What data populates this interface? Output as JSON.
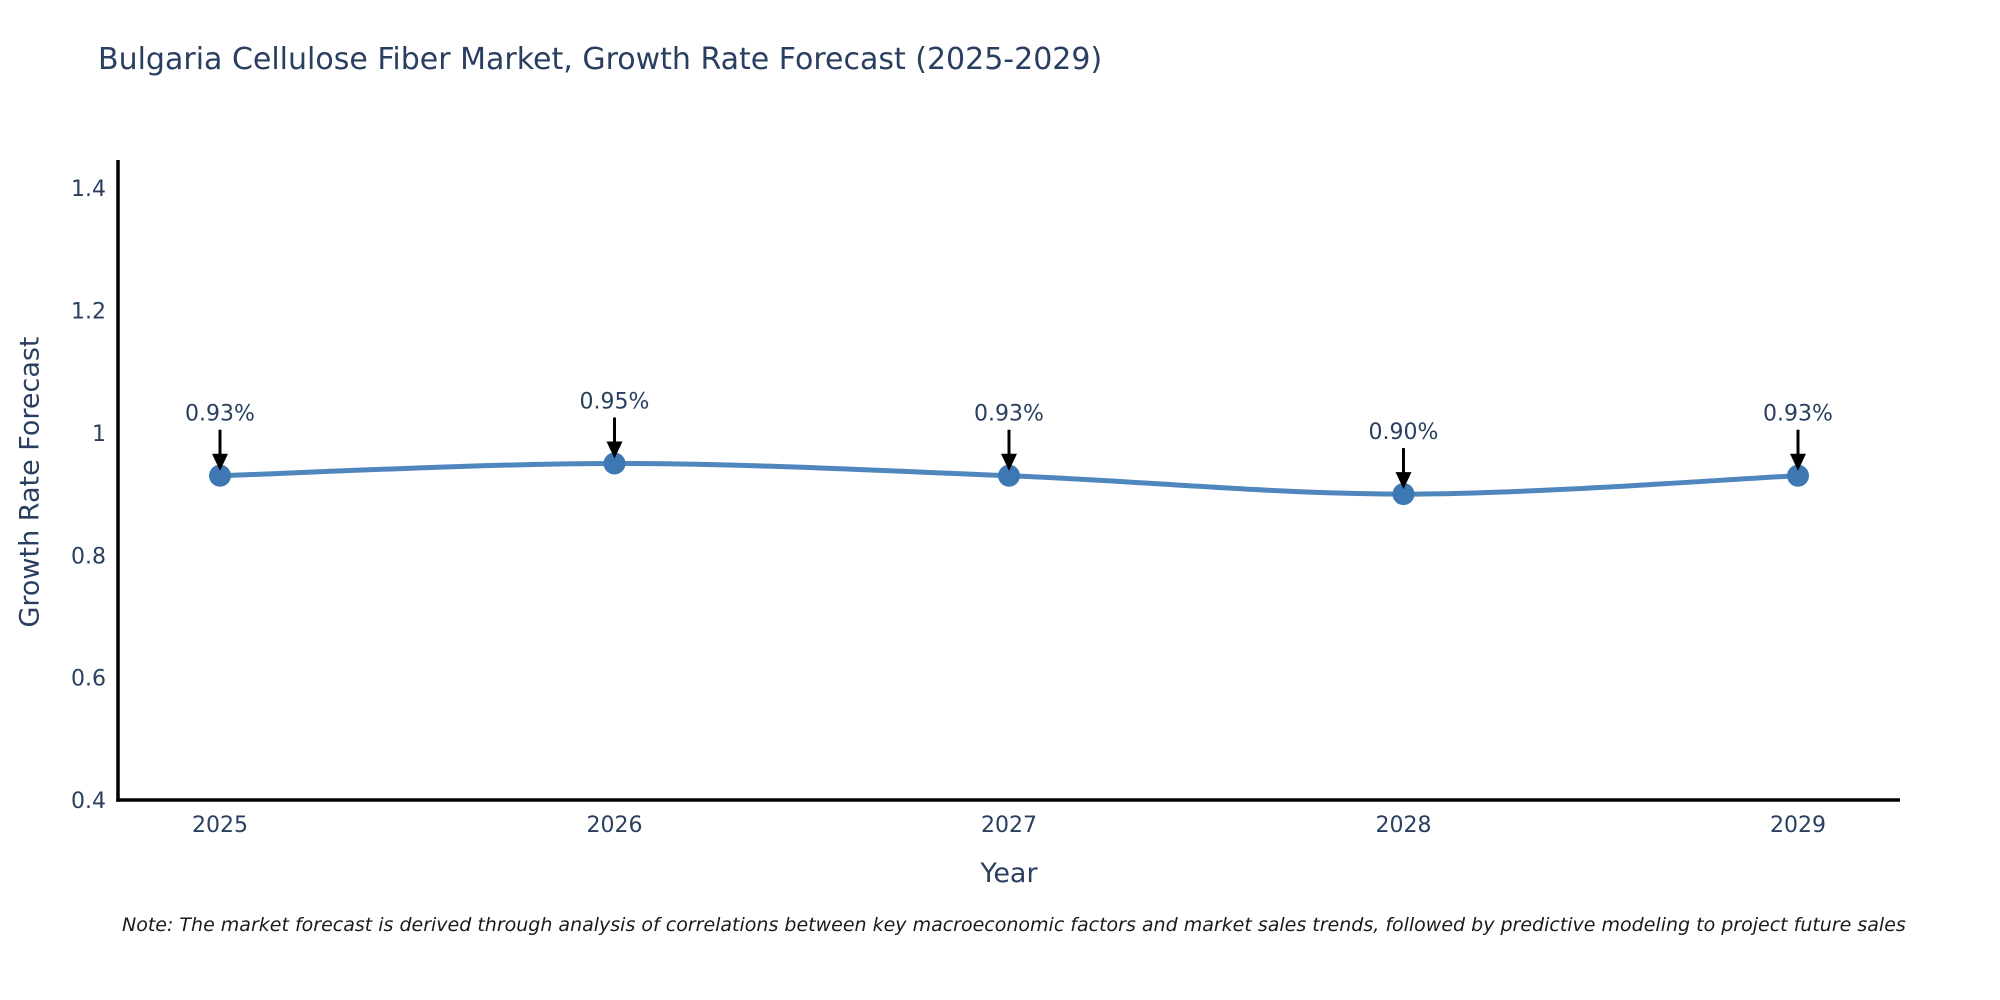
{
  "title": "Bulgaria Cellulose Fiber Market, Growth Rate Forecast (2025-2029)",
  "note": "Note: The market forecast is derived through analysis of correlations between key macroeconomic factors and market sales trends, followed by predictive modeling to project future sales",
  "chart_data": {
    "type": "line",
    "title": "Bulgaria Cellulose Fiber Market, Growth Rate Forecast (2025-2029)",
    "xlabel": "Year",
    "ylabel": "Growth Rate Forecast",
    "categories": [
      "2025",
      "2026",
      "2027",
      "2028",
      "2029"
    ],
    "series": [
      {
        "name": "Growth Rate Forecast",
        "values": [
          0.93,
          0.95,
          0.93,
          0.9,
          0.93
        ]
      }
    ],
    "point_labels": [
      "0.93%",
      "0.95%",
      "0.93%",
      "0.90%",
      "0.93%"
    ],
    "ylim": [
      0.4,
      1.446
    ],
    "yticks": [
      0.4,
      0.6,
      0.8,
      1,
      1.2,
      1.4
    ],
    "ytick_labels": [
      "0.4",
      "0.6",
      "0.8",
      "1",
      "1.2",
      "1.4"
    ],
    "grid": false,
    "legend": "none",
    "line_shape": "spline",
    "colors": {
      "line": "#4e86bd",
      "marker": "#3d78b3",
      "axis": "#000000",
      "arrow": "#000000",
      "text": "#2a3f5f"
    }
  }
}
